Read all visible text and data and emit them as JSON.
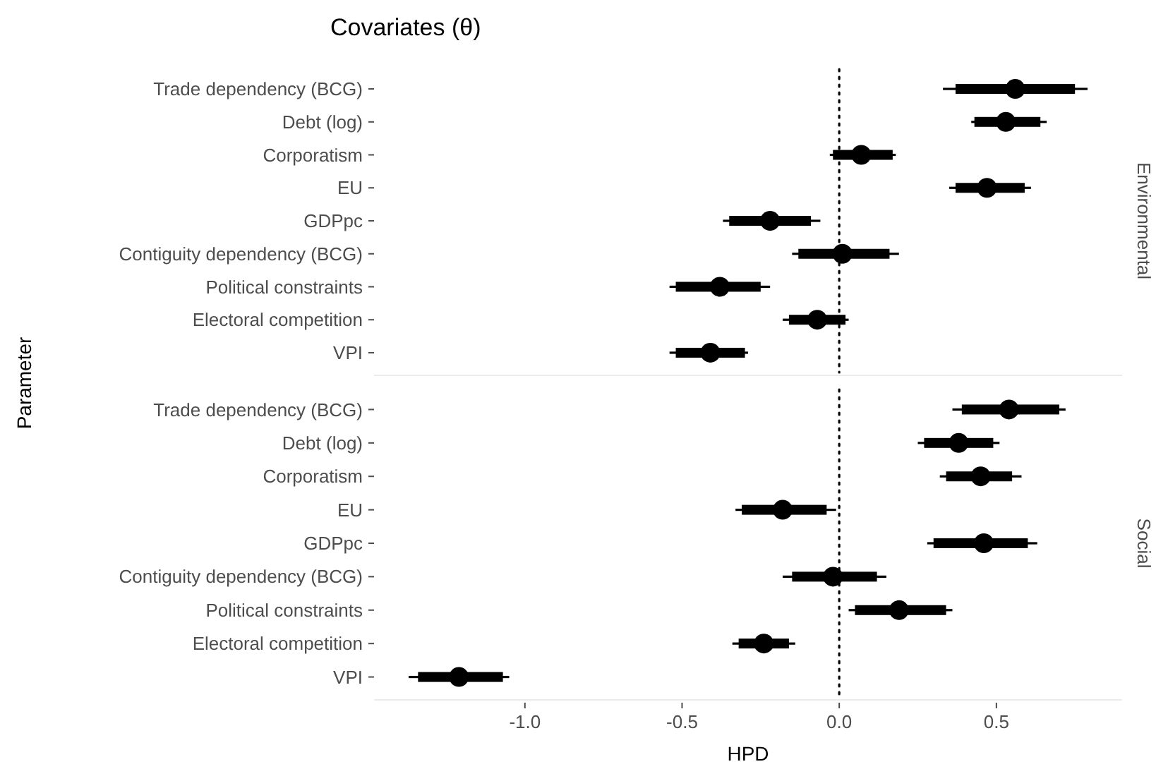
{
  "chart_data": [
    {
      "type": "bar",
      "orientation": "horizontal",
      "title": "Covariates (θ)",
      "ylabel": "Parameter",
      "y2label": "Environmental",
      "categories": [
        "Trade dependency (BCG)",
        "Debt (log)",
        "Corporatism",
        "EU",
        "GDPpc",
        "Contiguity dependency (BCG)",
        "Political constraints",
        "Electoral competition",
        "VPI"
      ],
      "xlim": [
        -1.48,
        0.9
      ],
      "tick_labels": "y",
      "grid": false,
      "marker": "circle",
      "ref_lines": [
        {
          "axis": "x",
          "value": 0,
          "line_style": "dotted",
          "color": "#000000"
        }
      ],
      "series": [
        {
          "color": "#000000",
          "base": [
            0.37,
            0.43,
            -0.02,
            0.37,
            -0.35,
            -0.13,
            -0.52,
            -0.16,
            -0.52
          ],
          "values": [
            0.38,
            0.21,
            0.19,
            0.22,
            0.26,
            0.29,
            0.27,
            0.18,
            0.22
          ]
        },
        {
          "type": "scatter",
          "color": "#000000",
          "values": [
            0.56,
            0.53,
            0.07,
            0.47,
            -0.22,
            0.01,
            -0.38,
            -0.07,
            -0.41
          ],
          "errors": [
            [
              0.33,
              0.79
            ],
            [
              0.42,
              0.66
            ],
            [
              -0.03,
              0.18
            ],
            [
              0.35,
              0.61
            ],
            [
              -0.37,
              -0.06
            ],
            [
              -0.15,
              0.19
            ],
            [
              -0.54,
              -0.22
            ],
            [
              -0.18,
              0.03
            ],
            [
              -0.54,
              -0.29
            ]
          ]
        }
      ]
    },
    {
      "type": "bar",
      "orientation": "horizontal",
      "xlabel": "HPD",
      "y2label": "Social",
      "categories": [
        "Trade dependency (BCG)",
        "Debt (log)",
        "Corporatism",
        "EU",
        "GDPpc",
        "Contiguity dependency (BCG)",
        "Political constraints",
        "Electoral competition",
        "VPI"
      ],
      "xlim": [
        -1.48,
        0.9
      ],
      "xticks": [
        {
          "value": -1.0,
          "label": "-1.0"
        },
        {
          "value": -0.5,
          "label": "-0.5"
        },
        {
          "value": 0.0,
          "label": "0.0"
        },
        0.5
      ],
      "grid": false,
      "marker": "circle",
      "ref_lines": [
        {
          "axis": "x",
          "value": 0,
          "line_style": "dotted",
          "color": "#000000"
        }
      ],
      "series": [
        {
          "color": "#000000",
          "base": [
            0.39,
            0.27,
            0.34,
            -0.31,
            0.3,
            -0.15,
            0.05,
            -0.32,
            -1.34
          ],
          "values": [
            0.31,
            0.22,
            0.21,
            0.27,
            0.3,
            0.27,
            0.29,
            0.16,
            0.27
          ]
        },
        {
          "type": "scatter",
          "color": "#000000",
          "values": [
            0.54,
            0.38,
            0.45,
            -0.18,
            0.46,
            -0.02,
            0.19,
            -0.24,
            -1.21
          ],
          "errors": [
            [
              0.36,
              0.72
            ],
            [
              0.25,
              0.51
            ],
            [
              0.32,
              0.58
            ],
            [
              -0.33,
              -0.01
            ],
            [
              0.28,
              0.63
            ],
            [
              -0.18,
              0.15
            ],
            [
              0.03,
              0.36
            ],
            [
              -0.34,
              -0.14
            ],
            [
              -1.37,
              -1.05
            ]
          ]
        }
      ]
    }
  ]
}
